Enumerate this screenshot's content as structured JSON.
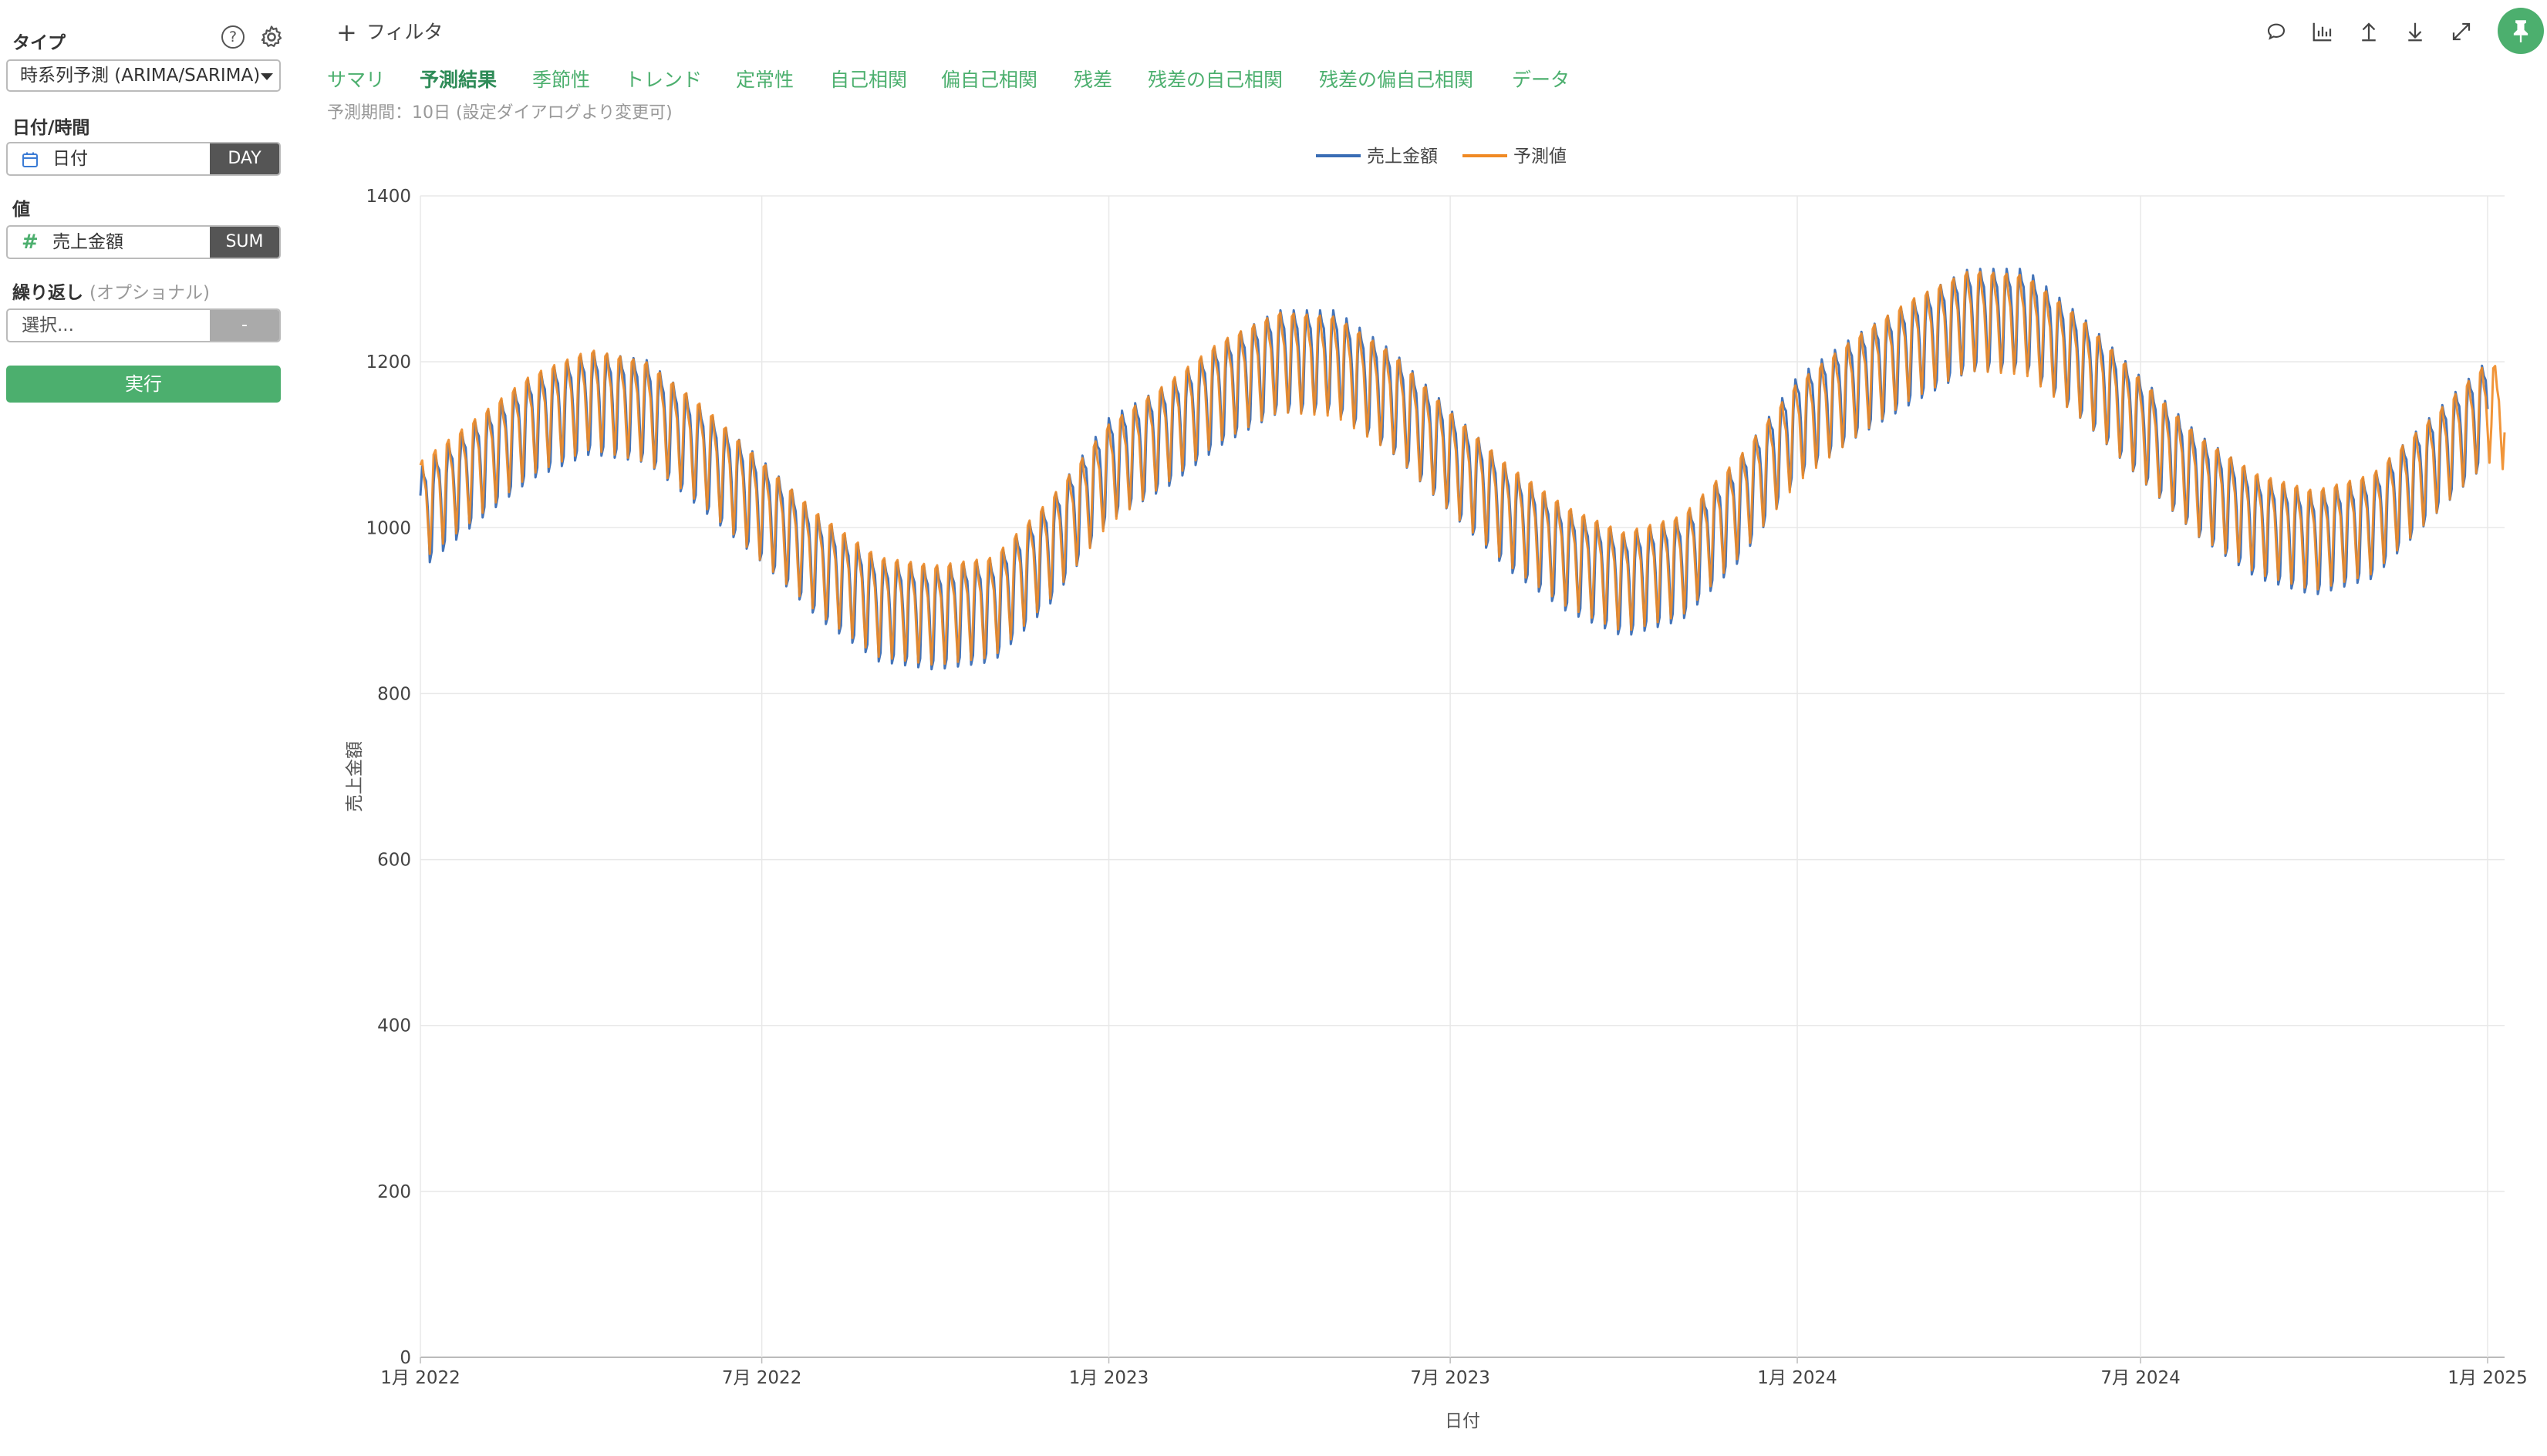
{
  "sidebar": {
    "type_label": "タイプ",
    "type_value": "時系列予測 (ARIMA/SARIMA)",
    "date_label": "日付/時間",
    "date_field": "日付",
    "date_unit": "DAY",
    "value_label": "値",
    "value_field": "売上金額",
    "value_agg": "SUM",
    "repeat_label": "繰り返し",
    "repeat_optional": "(オプショナル)",
    "repeat_placeholder": "選択...",
    "repeat_btn": "-",
    "run_label": "実行"
  },
  "header": {
    "filter_label": "フィルタ",
    "tabs": [
      "サマリ",
      "予測結果",
      "季節性",
      "トレンド",
      "定常性",
      "自己相関",
      "偏自己相関",
      "残差",
      "残差の自己相関",
      "残差の偏自己相関",
      "データ"
    ],
    "active_tab": "予測結果",
    "subnote": "予測期間：10日 (設定ダイアログより変更可)"
  },
  "toolbar": {
    "icons": [
      "comment-icon",
      "chart-icon",
      "upload-icon",
      "download-icon",
      "expand-icon",
      "pin-icon"
    ]
  },
  "colors": {
    "accent": "#4caf6e",
    "actual": "#3a6db5",
    "forecast": "#f08a24"
  },
  "chart_data": {
    "type": "line",
    "xlabel": "日付",
    "ylabel": "売上金額",
    "ylim": [
      0,
      1400
    ],
    "yticks": [
      0,
      200,
      400,
      600,
      800,
      1000,
      1200,
      1400
    ],
    "x_range": [
      "2022-01-01",
      "2025-01-10"
    ],
    "xticks": [
      {
        "date": "2022-01-01",
        "label": "1月 2022"
      },
      {
        "date": "2022-07-01",
        "label": "7月 2022"
      },
      {
        "date": "2023-01-01",
        "label": "1月 2023"
      },
      {
        "date": "2023-07-01",
        "label": "7月 2023"
      },
      {
        "date": "2024-01-01",
        "label": "1月 2024"
      },
      {
        "date": "2024-07-01",
        "label": "7月 2024"
      },
      {
        "date": "2025-01-01",
        "label": "1月 2025"
      }
    ],
    "legend_position": "top-center",
    "grid": true,
    "series": [
      {
        "name": "売上金額",
        "color": "#3a6db5",
        "weekly_amplitude": 60,
        "points": [
          [
            "2022-01-01",
            1020
          ],
          [
            "2022-02-01",
            1080
          ],
          [
            "2022-03-01",
            1130
          ],
          [
            "2022-04-01",
            1160
          ],
          [
            "2022-05-01",
            1150
          ],
          [
            "2022-06-01",
            1090
          ],
          [
            "2022-07-01",
            1030
          ],
          [
            "2022-08-01",
            960
          ],
          [
            "2022-09-01",
            910
          ],
          [
            "2022-10-01",
            900
          ],
          [
            "2022-11-01",
            910
          ],
          [
            "2022-12-01",
            980
          ],
          [
            "2023-01-01",
            1080
          ],
          [
            "2023-02-01",
            1120
          ],
          [
            "2023-03-01",
            1170
          ],
          [
            "2023-04-01",
            1210
          ],
          [
            "2023-05-01",
            1210
          ],
          [
            "2023-06-01",
            1160
          ],
          [
            "2023-07-01",
            1090
          ],
          [
            "2023-08-01",
            1020
          ],
          [
            "2023-09-01",
            970
          ],
          [
            "2023-10-01",
            940
          ],
          [
            "2023-11-01",
            960
          ],
          [
            "2023-12-01",
            1030
          ],
          [
            "2024-01-01",
            1130
          ],
          [
            "2024-02-01",
            1180
          ],
          [
            "2024-03-01",
            1220
          ],
          [
            "2024-04-01",
            1260
          ],
          [
            "2024-05-01",
            1260
          ],
          [
            "2024-06-01",
            1200
          ],
          [
            "2024-07-01",
            1130
          ],
          [
            "2024-08-01",
            1060
          ],
          [
            "2024-09-01",
            1010
          ],
          [
            "2024-10-01",
            990
          ],
          [
            "2024-11-01",
            1010
          ],
          [
            "2024-12-01",
            1080
          ],
          [
            "2025-01-01",
            1150
          ]
        ]
      },
      {
        "name": "予測値",
        "color": "#f08a24",
        "weekly_amplitude": 55,
        "points": [
          [
            "2022-01-01",
            1030
          ],
          [
            "2022-02-01",
            1085
          ],
          [
            "2022-03-01",
            1135
          ],
          [
            "2022-04-01",
            1165
          ],
          [
            "2022-05-01",
            1150
          ],
          [
            "2022-06-01",
            1095
          ],
          [
            "2022-07-01",
            1030
          ],
          [
            "2022-08-01",
            965
          ],
          [
            "2022-09-01",
            915
          ],
          [
            "2022-10-01",
            905
          ],
          [
            "2022-11-01",
            915
          ],
          [
            "2022-12-01",
            985
          ],
          [
            "2023-01-01",
            1075
          ],
          [
            "2023-02-01",
            1125
          ],
          [
            "2023-03-01",
            1175
          ],
          [
            "2023-04-01",
            1210
          ],
          [
            "2023-05-01",
            1205
          ],
          [
            "2023-06-01",
            1160
          ],
          [
            "2023-07-01",
            1090
          ],
          [
            "2023-08-01",
            1025
          ],
          [
            "2023-09-01",
            975
          ],
          [
            "2023-10-01",
            945
          ],
          [
            "2023-11-01",
            965
          ],
          [
            "2023-12-01",
            1035
          ],
          [
            "2024-01-01",
            1125
          ],
          [
            "2024-02-01",
            1180
          ],
          [
            "2024-03-01",
            1225
          ],
          [
            "2024-04-01",
            1260
          ],
          [
            "2024-05-01",
            1255
          ],
          [
            "2024-06-01",
            1200
          ],
          [
            "2024-07-01",
            1130
          ],
          [
            "2024-08-01",
            1060
          ],
          [
            "2024-09-01",
            1015
          ],
          [
            "2024-10-01",
            995
          ],
          [
            "2024-11-01",
            1015
          ],
          [
            "2024-12-01",
            1080
          ],
          [
            "2025-01-01",
            1150
          ],
          [
            "2025-01-10",
            1140
          ]
        ]
      }
    ]
  }
}
